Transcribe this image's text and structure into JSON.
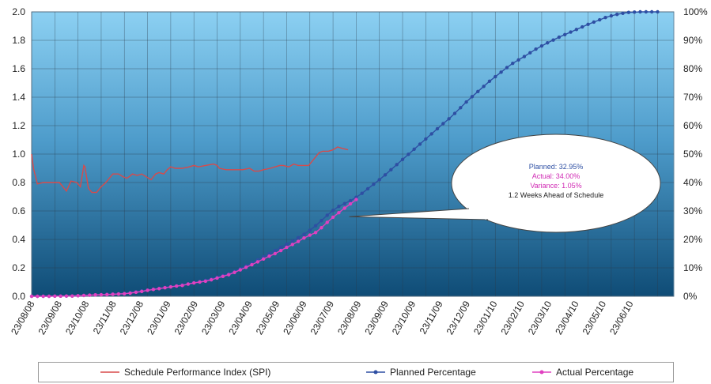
{
  "chart_data": {
    "type": "line",
    "x_dates": [
      "23/08/08",
      "23/09/08",
      "23/10/08",
      "23/11/08",
      "23/12/08",
      "23/01/09",
      "23/02/09",
      "23/03/09",
      "23/04/09",
      "23/05/09",
      "23/06/09",
      "23/07/09",
      "23/08/09",
      "23/09/09",
      "23/10/09",
      "23/11/09",
      "23/12/09",
      "23/01/10",
      "23/02/10",
      "23/03/10",
      "23/04/10",
      "23/05/10",
      "23/06/10"
    ],
    "y_left": {
      "min": 0,
      "max": 2.0,
      "step": 0.2,
      "ticks": [
        "0.0",
        "0.2",
        "0.4",
        "0.6",
        "0.8",
        "1.0",
        "1.2",
        "1.4",
        "1.6",
        "1.8",
        "2.0"
      ]
    },
    "y_right": {
      "min": 0,
      "max": 100,
      "step": 10,
      "ticks": [
        "0%",
        "10%",
        "20%",
        "30%",
        "40%",
        "50%",
        "60%",
        "70%",
        "80%",
        "90%",
        "100%"
      ]
    },
    "grid": true,
    "legend_position": "bottom",
    "series": [
      {
        "name": "Schedule Performance Index (SPI)",
        "axis": "left",
        "color": "#d84a4a",
        "marker": "none",
        "points": [
          [
            0.0,
            1.0
          ],
          [
            0.08,
            0.9
          ],
          [
            0.25,
            0.79
          ],
          [
            0.5,
            0.8
          ],
          [
            0.8,
            0.8
          ],
          [
            1.2,
            0.8
          ],
          [
            1.4,
            0.76
          ],
          [
            1.5,
            0.74
          ],
          [
            1.7,
            0.81
          ],
          [
            1.95,
            0.8
          ],
          [
            2.1,
            0.77
          ],
          [
            2.25,
            0.92
          ],
          [
            2.3,
            0.91
          ],
          [
            2.45,
            0.76
          ],
          [
            2.6,
            0.73
          ],
          [
            2.8,
            0.73
          ],
          [
            3.0,
            0.77
          ],
          [
            3.2,
            0.8
          ],
          [
            3.4,
            0.84
          ],
          [
            3.5,
            0.86
          ],
          [
            3.75,
            0.86
          ],
          [
            3.95,
            0.84
          ],
          [
            4.1,
            0.83
          ],
          [
            4.2,
            0.84
          ],
          [
            4.35,
            0.86
          ],
          [
            4.55,
            0.85
          ],
          [
            4.75,
            0.86
          ],
          [
            4.95,
            0.84
          ],
          [
            5.15,
            0.82
          ],
          [
            5.35,
            0.86
          ],
          [
            5.5,
            0.87
          ],
          [
            5.7,
            0.86
          ],
          [
            5.85,
            0.89
          ],
          [
            6.0,
            0.91
          ],
          [
            6.2,
            0.9
          ],
          [
            6.5,
            0.9
          ],
          [
            6.8,
            0.91
          ],
          [
            7.0,
            0.92
          ],
          [
            7.2,
            0.91
          ],
          [
            7.5,
            0.92
          ],
          [
            7.85,
            0.93
          ],
          [
            8.0,
            0.92
          ],
          [
            8.1,
            0.9
          ],
          [
            8.4,
            0.89
          ],
          [
            8.8,
            0.89
          ],
          [
            9.1,
            0.89
          ],
          [
            9.4,
            0.9
          ],
          [
            9.6,
            0.88
          ],
          [
            9.8,
            0.88
          ],
          [
            10.0,
            0.89
          ],
          [
            10.3,
            0.9
          ],
          [
            10.5,
            0.91
          ],
          [
            10.7,
            0.92
          ],
          [
            10.85,
            0.92
          ],
          [
            11.1,
            0.91
          ],
          [
            11.3,
            0.93
          ],
          [
            11.5,
            0.92
          ],
          [
            11.75,
            0.92
          ],
          [
            11.95,
            0.92
          ],
          [
            12.15,
            0.96
          ],
          [
            12.4,
            1.01
          ],
          [
            12.55,
            1.02
          ],
          [
            12.8,
            1.02
          ],
          [
            13.0,
            1.03
          ],
          [
            13.2,
            1.05
          ],
          [
            13.4,
            1.04
          ],
          [
            13.65,
            1.03
          ]
        ]
      },
      {
        "name": "Planned Percentage",
        "axis": "right",
        "color": "#2e4fa3",
        "marker": "circle",
        "points": [
          [
            0.0,
            0.0
          ],
          [
            0.25,
            0.0
          ],
          [
            0.5,
            0.0
          ],
          [
            0.75,
            0.0
          ],
          [
            1.0,
            0.05
          ],
          [
            1.25,
            0.05
          ],
          [
            1.5,
            0.1
          ],
          [
            1.75,
            0.1
          ],
          [
            2.0,
            0.2
          ],
          [
            2.25,
            0.3
          ],
          [
            2.5,
            0.4
          ],
          [
            2.75,
            0.5
          ],
          [
            3.0,
            0.6
          ],
          [
            3.25,
            0.7
          ],
          [
            3.5,
            0.8
          ],
          [
            3.75,
            0.9
          ],
          [
            4.0,
            1.0
          ],
          [
            4.25,
            1.3
          ],
          [
            4.5,
            1.6
          ],
          [
            4.75,
            1.9
          ],
          [
            5.0,
            2.2
          ],
          [
            5.25,
            2.5
          ],
          [
            5.5,
            2.8
          ],
          [
            5.75,
            3.1
          ],
          [
            6.0,
            3.4
          ],
          [
            6.25,
            3.7
          ],
          [
            6.5,
            4.0
          ],
          [
            6.75,
            4.4
          ],
          [
            7.0,
            4.8
          ],
          [
            7.25,
            5.2
          ],
          [
            7.5,
            5.6
          ],
          [
            7.75,
            6.1
          ],
          [
            8.0,
            6.7
          ],
          [
            8.25,
            7.3
          ],
          [
            8.5,
            7.9
          ],
          [
            8.75,
            8.7
          ],
          [
            9.0,
            9.7
          ],
          [
            9.25,
            10.7
          ],
          [
            9.5,
            11.7
          ],
          [
            9.75,
            12.8
          ],
          [
            10.0,
            13.9
          ],
          [
            10.25,
            15.0
          ],
          [
            10.5,
            16.1
          ],
          [
            10.75,
            17.2
          ],
          [
            11.0,
            18.3
          ],
          [
            11.25,
            19.4
          ],
          [
            11.5,
            20.6
          ],
          [
            11.75,
            21.8
          ],
          [
            12.0,
            23.2
          ],
          [
            12.25,
            24.8
          ],
          [
            12.5,
            26.6
          ],
          [
            12.75,
            28.5
          ],
          [
            13.0,
            30.2
          ],
          [
            13.25,
            31.6
          ],
          [
            13.5,
            32.6
          ],
          [
            13.75,
            33.6
          ],
          [
            14.0,
            34.8
          ],
          [
            14.25,
            36.2
          ],
          [
            14.5,
            37.8
          ],
          [
            14.75,
            39.4
          ],
          [
            15.0,
            41.0
          ],
          [
            15.25,
            42.7
          ],
          [
            15.5,
            44.5
          ],
          [
            15.75,
            46.3
          ],
          [
            16.0,
            48.1
          ],
          [
            16.25,
            49.9
          ],
          [
            16.5,
            51.7
          ],
          [
            16.75,
            53.5
          ],
          [
            17.0,
            55.3
          ],
          [
            17.25,
            57.1
          ],
          [
            17.5,
            58.9
          ],
          [
            17.75,
            60.7
          ],
          [
            18.0,
            62.4
          ],
          [
            18.25,
            64.3
          ],
          [
            18.5,
            66.3
          ],
          [
            18.75,
            68.3
          ],
          [
            19.0,
            70.2
          ],
          [
            19.25,
            72.0
          ],
          [
            19.5,
            73.8
          ],
          [
            19.75,
            75.6
          ],
          [
            20.0,
            77.2
          ],
          [
            20.25,
            78.8
          ],
          [
            20.5,
            80.4
          ],
          [
            20.75,
            81.9
          ],
          [
            21.0,
            83.1
          ],
          [
            21.25,
            84.3
          ],
          [
            21.5,
            85.6
          ],
          [
            21.75,
            86.9
          ],
          [
            22.0,
            88.0
          ],
          [
            22.25,
            89.1
          ],
          [
            22.5,
            90.1
          ],
          [
            22.75,
            91.1
          ],
          [
            23.0,
            92.0
          ],
          [
            23.25,
            92.9
          ],
          [
            23.5,
            93.8
          ],
          [
            23.75,
            94.7
          ],
          [
            24.0,
            95.6
          ],
          [
            24.25,
            96.4
          ],
          [
            24.5,
            97.2
          ],
          [
            24.75,
            98.0
          ],
          [
            25.0,
            98.6
          ],
          [
            25.25,
            99.1
          ],
          [
            25.5,
            99.5
          ],
          [
            25.75,
            99.8
          ],
          [
            26.0,
            99.9
          ],
          [
            26.25,
            100.0
          ],
          [
            26.5,
            100.0
          ],
          [
            26.75,
            100.0
          ],
          [
            27.0,
            100.0
          ]
        ]
      },
      {
        "name": "Actual Percentage",
        "axis": "right",
        "color": "#e040c0",
        "marker": "circle",
        "points": [
          [
            0.0,
            0.0
          ],
          [
            0.25,
            0.0
          ],
          [
            0.5,
            0.0
          ],
          [
            0.75,
            0.0
          ],
          [
            1.0,
            0.05
          ],
          [
            1.25,
            0.05
          ],
          [
            1.5,
            0.1
          ],
          [
            1.75,
            0.1
          ],
          [
            2.0,
            0.2
          ],
          [
            2.25,
            0.3
          ],
          [
            2.5,
            0.4
          ],
          [
            2.75,
            0.5
          ],
          [
            3.0,
            0.55
          ],
          [
            3.25,
            0.6
          ],
          [
            3.5,
            0.7
          ],
          [
            3.75,
            0.8
          ],
          [
            4.0,
            0.9
          ],
          [
            4.25,
            1.1
          ],
          [
            4.5,
            1.4
          ],
          [
            4.75,
            1.7
          ],
          [
            5.0,
            2.1
          ],
          [
            5.25,
            2.4
          ],
          [
            5.5,
            2.7
          ],
          [
            5.75,
            3.0
          ],
          [
            6.0,
            3.3
          ],
          [
            6.25,
            3.6
          ],
          [
            6.5,
            3.8
          ],
          [
            6.75,
            4.3
          ],
          [
            7.0,
            4.7
          ],
          [
            7.25,
            5.0
          ],
          [
            7.5,
            5.3
          ],
          [
            7.75,
            5.8
          ],
          [
            8.0,
            6.4
          ],
          [
            8.25,
            7.0
          ],
          [
            8.5,
            7.6
          ],
          [
            8.75,
            8.4
          ],
          [
            9.0,
            9.3
          ],
          [
            9.25,
            10.2
          ],
          [
            9.5,
            11.1
          ],
          [
            9.75,
            12.1
          ],
          [
            10.0,
            13.1
          ],
          [
            10.25,
            14.1
          ],
          [
            10.5,
            15.0
          ],
          [
            10.75,
            16.1
          ],
          [
            11.0,
            17.2
          ],
          [
            11.25,
            18.2
          ],
          [
            11.5,
            19.3
          ],
          [
            11.75,
            20.5
          ],
          [
            12.0,
            21.5
          ],
          [
            12.25,
            22.4
          ],
          [
            12.5,
            24.1
          ],
          [
            12.75,
            26.0
          ],
          [
            13.0,
            27.8
          ],
          [
            13.25,
            29.4
          ],
          [
            13.5,
            31.0
          ],
          [
            13.75,
            32.5
          ],
          [
            14.0,
            34.0
          ]
        ]
      }
    ],
    "annotation": {
      "lines": [
        {
          "text": "Planned: 32.95%",
          "color": "#2e4fa3"
        },
        {
          "text": "Actual: 34.00%",
          "color": "#d02ab4"
        },
        {
          "text": "Variance: 1.05%",
          "color": "#d02ab4"
        },
        {
          "text": "1.2 Weeks Ahead of Schedule",
          "color": "#222222"
        }
      ],
      "pointer_at": {
        "x_index": 13.7,
        "y_percent": 28.0
      }
    }
  },
  "legend": [
    {
      "label": "Schedule Performance Index (SPI)",
      "color": "#d84a4a",
      "marker": false
    },
    {
      "label": "Planned Percentage",
      "color": "#2e4fa3",
      "marker": true
    },
    {
      "label": "Actual Percentage",
      "color": "#e040c0",
      "marker": true
    }
  ]
}
